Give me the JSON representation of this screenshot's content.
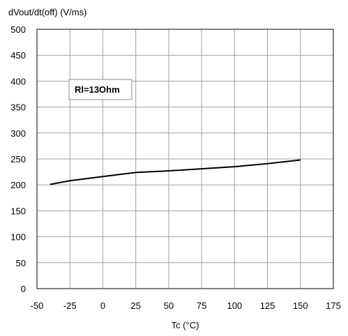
{
  "chart_data": {
    "type": "line",
    "ylabel": "dVout/dt(off) (V/ms)",
    "xlabel": "Tc (°C)",
    "xlim": [
      -50,
      175
    ],
    "ylim": [
      0,
      500
    ],
    "xticks": [
      -50,
      -25,
      0,
      25,
      50,
      75,
      100,
      125,
      150,
      175
    ],
    "yticks": [
      0,
      50,
      100,
      150,
      200,
      250,
      300,
      350,
      400,
      450,
      500
    ],
    "grid": true,
    "annotation": "Rl=13Ohm",
    "series": [
      {
        "x": [
          -40,
          -25,
          0,
          25,
          50,
          75,
          100,
          125,
          150
        ],
        "y": [
          201,
          208,
          216,
          224,
          227,
          231,
          235,
          241,
          248
        ]
      }
    ]
  }
}
